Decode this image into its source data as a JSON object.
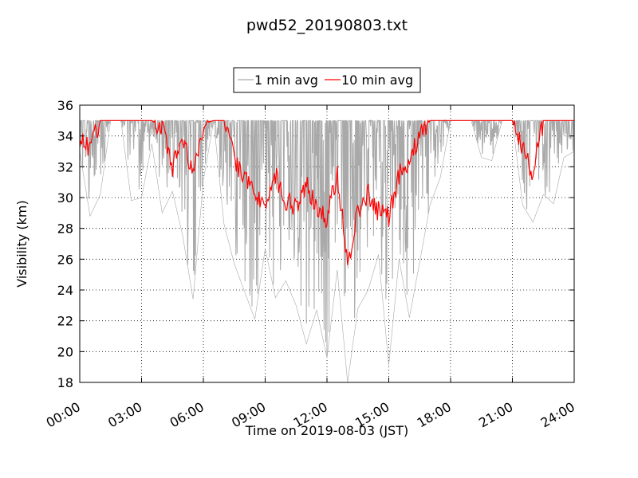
{
  "chart_data": {
    "type": "line",
    "title": "pwd52_20190803.txt",
    "xlabel": "Time on 2019-08-03 (JST)",
    "ylabel": "Visibility (km)",
    "xlim": [
      "00:00",
      "24:00"
    ],
    "ylim": [
      18,
      36
    ],
    "x_ticks": [
      "00:00",
      "03:00",
      "06:00",
      "09:00",
      "12:00",
      "15:00",
      "18:00",
      "21:00",
      "24:00"
    ],
    "y_ticks": [
      "18",
      "20",
      "22",
      "24",
      "26",
      "28",
      "30",
      "32",
      "34",
      "36"
    ],
    "grid": true,
    "legend_position": "top-center",
    "series": [
      {
        "name": "1 min avg",
        "color": "#a9a9a9",
        "x": [
          "00:00",
          "00:30",
          "01:00",
          "01:30",
          "02:00",
          "02:30",
          "03:00",
          "03:30",
          "04:00",
          "04:30",
          "05:00",
          "05:30",
          "06:00",
          "06:30",
          "07:00",
          "07:30",
          "08:00",
          "08:30",
          "09:00",
          "09:30",
          "10:00",
          "10:30",
          "11:00",
          "11:30",
          "12:00",
          "12:30",
          "13:00",
          "13:30",
          "14:00",
          "14:30",
          "15:00",
          "15:30",
          "16:00",
          "16:30",
          "17:00",
          "17:30",
          "18:00",
          "18:30",
          "19:00",
          "19:30",
          "20:00",
          "20:30",
          "21:00",
          "21:30",
          "22:00",
          "22:30",
          "23:00",
          "23:30",
          "24:00"
        ],
        "min": [
          33.0,
          28.8,
          30.2,
          35.0,
          35.0,
          29.8,
          30.0,
          33.5,
          29.0,
          30.4,
          27.5,
          23.4,
          31.1,
          35.0,
          28.3,
          25.7,
          23.9,
          22.1,
          26.7,
          23.5,
          24.6,
          23.0,
          20.5,
          22.7,
          19.6,
          25.3,
          18.0,
          22.8,
          24.0,
          26.3,
          19.1,
          26.0,
          22.2,
          25.8,
          29.5,
          31.3,
          35.0,
          35.0,
          35.0,
          32.6,
          32.4,
          35.0,
          35.0,
          29.5,
          28.4,
          30.2,
          29.6,
          32.6,
          33.0
        ],
        "max": [
          35.0,
          35.0,
          35.0,
          35.0,
          35.0,
          35.0,
          35.0,
          35.0,
          35.0,
          35.0,
          35.0,
          35.0,
          35.0,
          35.0,
          35.0,
          35.0,
          35.0,
          35.0,
          35.0,
          35.0,
          35.0,
          35.0,
          35.0,
          35.0,
          35.0,
          35.0,
          35.0,
          35.0,
          35.0,
          35.0,
          35.0,
          35.0,
          35.0,
          35.0,
          35.0,
          35.0,
          35.0,
          35.0,
          35.0,
          35.0,
          35.0,
          35.0,
          35.0,
          35.0,
          35.0,
          35.0,
          35.0,
          35.0,
          35.0
        ]
      },
      {
        "name": "10 min avg",
        "color": "#ff0000",
        "x": [
          "00:00",
          "00:30",
          "01:00",
          "01:30",
          "02:00",
          "02:30",
          "03:00",
          "03:30",
          "04:00",
          "04:30",
          "05:00",
          "05:30",
          "06:00",
          "06:30",
          "07:00",
          "07:30",
          "08:00",
          "08:30",
          "09:00",
          "09:30",
          "10:00",
          "10:30",
          "11:00",
          "11:30",
          "12:00",
          "12:30",
          "13:00",
          "13:30",
          "14:00",
          "14:30",
          "15:00",
          "15:30",
          "16:00",
          "16:30",
          "17:00",
          "17:30",
          "18:00",
          "18:30",
          "19:00",
          "19:30",
          "20:00",
          "20:30",
          "21:00",
          "21:30",
          "22:00",
          "22:30",
          "23:00",
          "23:30",
          "24:00"
        ],
        "values": [
          34.0,
          33.2,
          35.0,
          35.0,
          35.0,
          35.0,
          35.0,
          35.0,
          34.5,
          32.0,
          33.8,
          31.4,
          34.8,
          35.0,
          35.0,
          32.5,
          31.2,
          30.5,
          29.0,
          31.5,
          29.8,
          29.5,
          31.0,
          29.2,
          28.6,
          31.6,
          25.5,
          29.2,
          30.3,
          29.1,
          28.7,
          31.5,
          32.4,
          34.0,
          35.0,
          35.0,
          35.0,
          35.0,
          35.0,
          35.0,
          35.0,
          35.0,
          35.0,
          33.3,
          31.5,
          35.0,
          35.0,
          35.0,
          35.0
        ]
      }
    ]
  }
}
